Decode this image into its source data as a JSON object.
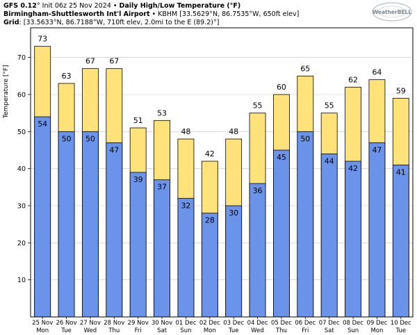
{
  "header": {
    "model": "GFS 0.12",
    "init": "° Init 06z 25 Nov 2024",
    "sep": " • ",
    "product": "Daily High/Low Temperature (°F)",
    "station_name": "Birmingham-Shuttlesworth Int'l Airport",
    "station_info": " • KBHM [33.5629°N, 86.7535°W, 650ft elev]",
    "grid_label": "Grid",
    "grid_info": ": [33.5633°N, 86.7188°W, 710ft elev, 2.0mi to the E (89.2)°]"
  },
  "logo": {
    "text": "WeatherBELL"
  },
  "chart_data": {
    "type": "bar",
    "ylabel": "Temperature [°F]",
    "ylim": [
      0,
      78
    ],
    "yticks": [
      10,
      20,
      30,
      40,
      50,
      60,
      70
    ],
    "grid": true,
    "categories": [
      {
        "date": "25 Nov",
        "day": "Mon"
      },
      {
        "date": "26 Nov",
        "day": "Tue"
      },
      {
        "date": "27 Nov",
        "day": "Wed"
      },
      {
        "date": "28 Nov",
        "day": "Thu"
      },
      {
        "date": "29 Nov",
        "day": "Fri"
      },
      {
        "date": "30 Nov",
        "day": "Sat"
      },
      {
        "date": "01 Dec",
        "day": "Sun"
      },
      {
        "date": "02 Dec",
        "day": "Mon"
      },
      {
        "date": "03 Dec",
        "day": "Tue"
      },
      {
        "date": "04 Dec",
        "day": "Wed"
      },
      {
        "date": "05 Dec",
        "day": "Thu"
      },
      {
        "date": "06 Dec",
        "day": "Fri"
      },
      {
        "date": "07 Dec",
        "day": "Sat"
      },
      {
        "date": "08 Dec",
        "day": "Sun"
      },
      {
        "date": "09 Dec",
        "day": "Mon"
      },
      {
        "date": "10 Dec",
        "day": "Tue"
      }
    ],
    "series": [
      {
        "role": "high",
        "color": "#ffe27a",
        "values": [
          73,
          63,
          67,
          67,
          51,
          53,
          48,
          42,
          48,
          55,
          60,
          65,
          55,
          62,
          64,
          59
        ]
      },
      {
        "role": "low",
        "color": "#6b93ea",
        "values": [
          54,
          50,
          50,
          47,
          39,
          37,
          32,
          28,
          30,
          36,
          45,
          50,
          44,
          42,
          47,
          41
        ]
      }
    ]
  }
}
